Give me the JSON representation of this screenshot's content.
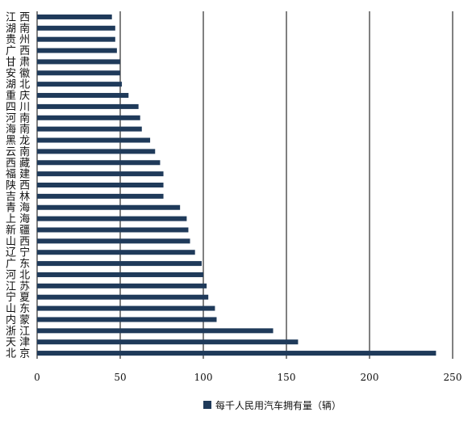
{
  "chart_data": {
    "type": "bar",
    "orientation": "horizontal",
    "categories": [
      "江 西",
      "湖 南",
      "贵 州",
      "广 西",
      "甘 肃",
      "安 徽",
      "湖 北",
      "重 庆",
      "四 川",
      "河 南",
      "海 南",
      "黑 龙",
      "云 南",
      "西 藏",
      "福 建",
      "陕 西",
      "吉 林",
      "青 海",
      "上 海",
      "新 疆",
      "山 西",
      "辽 宁",
      "广 东",
      "河 北",
      "江 苏",
      "宁 夏",
      "山 东",
      "内 蒙",
      "浙 江",
      "天 津",
      "北 京"
    ],
    "series": [
      {
        "name": "每千人民用汽车拥有量（辆）",
        "color": "#1f3a5a",
        "values": [
          45,
          47,
          47,
          48,
          50,
          50,
          51,
          55,
          61,
          62,
          63,
          68,
          71,
          74,
          76,
          76,
          76,
          86,
          90,
          91,
          92,
          95,
          99,
          100,
          102,
          103,
          107,
          108,
          142,
          157,
          240
        ]
      }
    ],
    "xticks": [
      "0",
      "50",
      "100",
      "150",
      "200",
      "250"
    ],
    "xlim": [
      0,
      250
    ],
    "grid": "vertical",
    "legend": "bottom"
  }
}
